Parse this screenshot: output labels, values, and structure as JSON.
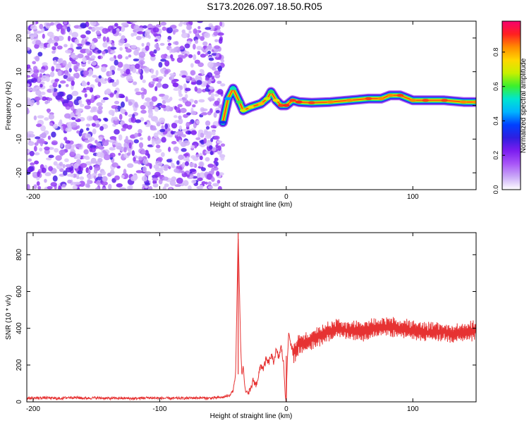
{
  "title": "S173.2026.097.18.50.R05",
  "colors": {
    "line": "#e63232",
    "colormap": [
      "#ffffff",
      "#c9a8f7",
      "#a855f7",
      "#7c1df0",
      "#2f1ee0",
      "#0040ff",
      "#00b4ff",
      "#00e5d0",
      "#3cf02c",
      "#c8f000",
      "#ffd700",
      "#ff8c00",
      "#ff2020",
      "#f5006e"
    ]
  },
  "chart_data": [
    {
      "type": "heatmap",
      "title": "S173.2026.097.18.50.R05",
      "xlabel": "Height of straight line (km)",
      "ylabel": "Frequency (Hz)",
      "xlim": [
        -205,
        150
      ],
      "ylim": [
        -25,
        25
      ],
      "xticks": [
        -200,
        -100,
        0,
        100
      ],
      "yticks": [
        -20,
        -10,
        0,
        10,
        20
      ],
      "xtick_labels": [
        "-200",
        "-100",
        "0",
        "100"
      ],
      "ytick_labels": [
        "-20",
        "-10",
        "0",
        "10",
        "20"
      ],
      "noise_region": {
        "x": [
          -205,
          -50
        ],
        "y": [
          -25,
          25
        ],
        "amplitude": [
          0.05,
          0.3
        ]
      },
      "ridge": [
        {
          "x": -50,
          "y": -5,
          "amp": 0.35
        },
        {
          "x": -46,
          "y": 2,
          "amp": 0.45
        },
        {
          "x": -42,
          "y": 5,
          "amp": 0.55
        },
        {
          "x": -37,
          "y": 1,
          "amp": 0.6
        },
        {
          "x": -34,
          "y": -1.5,
          "amp": 0.7
        },
        {
          "x": -28,
          "y": -0.5,
          "amp": 0.75
        },
        {
          "x": -20,
          "y": 0.5,
          "amp": 0.8
        },
        {
          "x": -15,
          "y": 2,
          "amp": 0.7
        },
        {
          "x": -12,
          "y": 4,
          "amp": 0.6
        },
        {
          "x": -8,
          "y": 1.5,
          "amp": 0.75
        },
        {
          "x": -4,
          "y": 0,
          "amp": 0.9
        },
        {
          "x": 0,
          "y": 0,
          "amp": 0.92
        },
        {
          "x": 5,
          "y": 1.5,
          "amp": 0.9
        },
        {
          "x": 10,
          "y": 1,
          "amp": 0.92
        },
        {
          "x": 20,
          "y": 0.8,
          "amp": 0.9
        },
        {
          "x": 35,
          "y": 1,
          "amp": 0.85
        },
        {
          "x": 50,
          "y": 1.5,
          "amp": 0.85
        },
        {
          "x": 65,
          "y": 2,
          "amp": 0.9
        },
        {
          "x": 75,
          "y": 2,
          "amp": 0.85
        },
        {
          "x": 82,
          "y": 3,
          "amp": 0.85
        },
        {
          "x": 90,
          "y": 3,
          "amp": 0.9
        },
        {
          "x": 100,
          "y": 1.5,
          "amp": 0.85
        },
        {
          "x": 110,
          "y": 1.5,
          "amp": 0.9
        },
        {
          "x": 125,
          "y": 1.5,
          "amp": 0.9
        },
        {
          "x": 140,
          "y": 1,
          "amp": 0.85
        },
        {
          "x": 150,
          "y": 1,
          "amp": 0.85
        }
      ],
      "colorbar": {
        "label": "Normalized spectral amplitude",
        "range": [
          0,
          0.98
        ],
        "ticks": [
          "0.0",
          "0.2",
          "0.4",
          "0.6",
          "0.8"
        ]
      }
    },
    {
      "type": "line",
      "xlabel": "Height of straight line (km)",
      "ylabel": "SNR (10 * v/v)",
      "xlim": [
        -205,
        150
      ],
      "ylim": [
        0,
        920
      ],
      "xticks": [
        -200,
        -100,
        0,
        100
      ],
      "yticks": [
        0,
        200,
        400,
        600,
        800
      ],
      "xtick_labels": [
        "-200",
        "-100",
        "0",
        "100"
      ],
      "ytick_labels": [
        "0",
        "200",
        "400",
        "600",
        "800"
      ],
      "series": [
        {
          "name": "SNR",
          "x": [
            -205,
            -190,
            -180,
            -170,
            -160,
            -150,
            -140,
            -130,
            -120,
            -110,
            -100,
            -90,
            -80,
            -70,
            -60,
            -50,
            -45,
            -42,
            -40,
            -38,
            -36,
            -35,
            -34,
            -33,
            -32,
            -31,
            -30,
            -28,
            -26,
            -24,
            -22,
            -20,
            -18,
            -16,
            -14,
            -12,
            -10,
            -8,
            -6,
            -4,
            -2,
            -1,
            0,
            1,
            2,
            4,
            6,
            8,
            10,
            15,
            20,
            30,
            40,
            50,
            60,
            70,
            80,
            90,
            100,
            110,
            120,
            130,
            140,
            150
          ],
          "y": [
            20,
            22,
            18,
            25,
            20,
            22,
            19,
            20,
            18,
            22,
            20,
            19,
            20,
            22,
            20,
            25,
            35,
            60,
            150,
            918,
            300,
            140,
            200,
            100,
            50,
            60,
            40,
            70,
            120,
            90,
            140,
            200,
            180,
            230,
            210,
            250,
            220,
            280,
            240,
            300,
            200,
            60,
            5,
            250,
            380,
            300,
            260,
            290,
            320,
            320,
            340,
            370,
            400,
            390,
            380,
            400,
            410,
            400,
            390,
            380,
            380,
            370,
            380,
            390
          ]
        }
      ]
    }
  ]
}
